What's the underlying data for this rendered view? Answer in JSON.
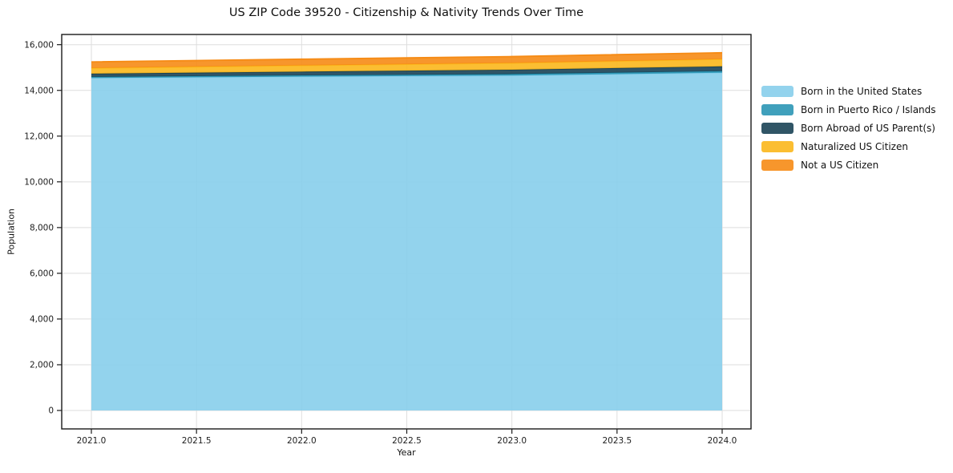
{
  "chart_data": {
    "type": "area",
    "stacked": true,
    "title": "US ZIP Code 39520 - Citizenship & Nativity Trends Over Time",
    "xlabel": "Year",
    "ylabel": "Population",
    "x": [
      2021,
      2022,
      2023,
      2024
    ],
    "series": [
      {
        "name": "Born in the United States",
        "color": "#87CEEB",
        "values": [
          14540,
          14600,
          14650,
          14770
        ]
      },
      {
        "name": "Born in Puerto Rico / Islands",
        "color": "#2B96B5",
        "values": [
          50,
          55,
          62,
          70
        ]
      },
      {
        "name": "Born Abroad of US Parent(s)",
        "color": "#1A4355",
        "values": [
          140,
          165,
          190,
          210
        ]
      },
      {
        "name": "Naturalized US Citizen",
        "color": "#FBB71C",
        "values": [
          245,
          270,
          295,
          315
        ]
      },
      {
        "name": "Not a US Citizen",
        "color": "#F68B15",
        "values": [
          270,
          275,
          282,
          280
        ]
      }
    ],
    "xticks": [
      2021.0,
      2021.5,
      2022.0,
      2022.5,
      2023.0,
      2023.5,
      2024.0
    ],
    "yticks": [
      0,
      2000,
      4000,
      6000,
      8000,
      10000,
      12000,
      14000,
      16000
    ],
    "xlim": [
      2020.86,
      2024.14
    ],
    "ylim": [
      0,
      16000
    ],
    "grid": true,
    "legend_position": "right"
  },
  "style": {
    "grid_color": "#dedede",
    "spine_color": "#1a1a1a",
    "tick_color": "#1a1a1a",
    "fill_opacity": 0.9
  }
}
